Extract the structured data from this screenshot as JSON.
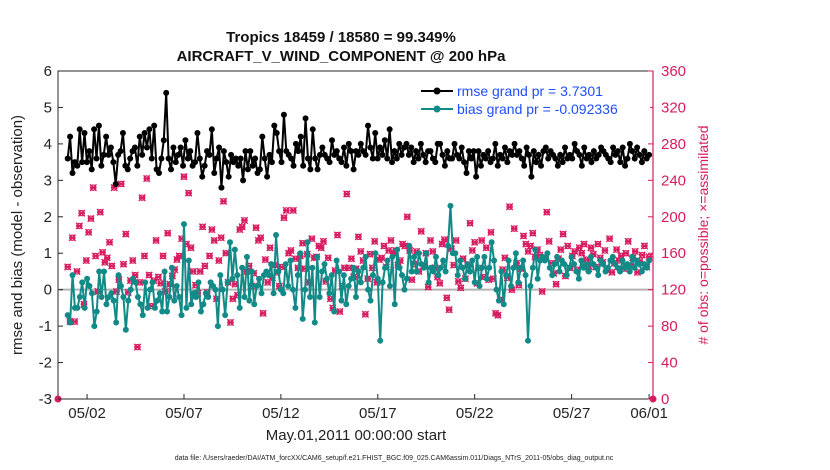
{
  "chart_data": {
    "type": "line",
    "title_line1": "Tropics 18459 / 18580 = 99.349%",
    "title_line2": "AIRCRAFT_V_WIND_COMPONENT @ 200 hPa",
    "xlabel": "May.01,2011 00:00:00 start",
    "ylabel": "rmse and bias (model - observation)",
    "ylabel_right": "# of obs: o=possible; ×=assimilated",
    "footer": "data file: /Users/raeder/DAI/ATM_forcXX/CAM6_setup/f.e21.FHIST_BGC.f09_025.CAM6assim.011/Diags_NTrS_2011-05/obs_diag_output.nc",
    "xlim": [
      0.5,
      31.2
    ],
    "ylim": [
      -3,
      6
    ],
    "ylim_right": [
      0,
      360
    ],
    "y_ticks": [
      "-3",
      "-2",
      "-1",
      "0",
      "1",
      "2",
      "3",
      "4",
      "5",
      "6"
    ],
    "y_right_ticks": [
      "0",
      "40",
      "80",
      "120",
      "160",
      "200",
      "240",
      "280",
      "320",
      "360"
    ],
    "x_ticks": [
      {
        "label": "05/02",
        "value": 2
      },
      {
        "label": "05/07",
        "value": 7
      },
      {
        "label": "05/12",
        "value": 12
      },
      {
        "label": "05/17",
        "value": 17
      },
      {
        "label": "05/22",
        "value": 22
      },
      {
        "label": "05/27",
        "value": 27
      },
      {
        "label": "06/01",
        "value": 31
      }
    ],
    "series": [
      {
        "name": "rmse grand pr = 3.7301",
        "color": "#000000",
        "values": [
          3.6,
          4.2,
          3.2,
          3.5,
          3.4,
          4.4,
          3.5,
          4.3,
          3.5,
          3.8,
          3.3,
          4.4,
          3.6,
          4.5,
          3.4,
          3.7,
          4.2,
          3.7,
          3.9,
          3.5,
          2.9,
          3.7,
          3.8,
          4.3,
          3.4,
          3.3,
          3.6,
          3.8,
          3.9,
          3.4,
          4.2,
          3.7,
          4.3,
          3.9,
          4.4,
          3.6,
          4.5,
          3.3,
          3.2,
          3.6,
          4.1,
          5.4,
          3.6,
          3.3,
          3.9,
          3.5,
          3.7,
          3.9,
          3.4,
          4.1,
          3.6,
          3.8,
          3.4,
          3.5,
          4.3,
          3.6,
          3.1,
          3.4,
          3.8,
          3.7,
          4.4,
          3.2,
          3.6,
          3.9,
          2.8,
          3.8,
          3.5,
          3.1,
          3.7,
          3.5,
          3.6,
          3.4,
          3.6,
          3.0,
          3.8,
          3.3,
          3.8,
          3.4,
          3.6,
          3.2,
          3.3,
          4.2,
          3.6,
          3.1,
          3.7,
          3.5,
          4.5,
          4.3,
          3.8,
          3.5,
          4.8,
          3.8,
          3.7,
          3.6,
          3.4,
          4.0,
          3.8,
          4.2,
          3.4,
          4.7,
          3.6,
          3.3,
          4.4,
          3.6,
          3.3,
          3.7,
          3.9,
          3.7,
          3.6,
          3.5,
          4.1,
          3.7,
          3.8,
          3.6,
          3.5,
          3.9,
          3.4,
          4.0,
          3.8,
          3.3,
          3.8,
          3.7,
          4.0,
          3.8,
          3.7,
          4.5,
          3.9,
          3.6,
          4.3,
          3.6,
          3.9,
          3.7,
          4.1,
          3.6,
          4.4,
          3.5,
          3.8,
          3.6,
          4.0,
          3.7,
          3.9,
          4.0,
          3.7,
          3.9,
          3.5,
          3.8,
          3.6,
          4.0,
          3.7,
          3.5,
          3.8,
          3.8,
          3.6,
          3.5,
          4.0,
          4.0,
          3.7,
          3.4,
          3.8,
          3.6,
          3.6,
          4.0,
          3.7,
          3.6,
          3.9,
          3.5,
          3.2,
          3.8,
          3.6,
          3.8,
          3.1,
          3.8,
          3.4,
          3.7,
          3.6,
          3.8,
          3.5,
          3.6,
          4.0,
          3.4,
          3.7,
          3.6,
          3.9,
          3.5,
          3.8,
          3.7,
          4.0,
          3.7,
          3.8,
          3.6,
          3.4,
          3.9,
          3.7,
          3.1,
          3.8,
          3.5,
          3.7,
          3.4,
          3.8,
          3.9,
          3.6,
          3.8,
          3.7,
          3.6,
          3.4,
          3.7,
          3.5,
          3.9,
          3.6,
          3.7,
          3.6,
          4.0,
          3.8,
          3.7,
          3.4,
          3.9,
          3.6,
          3.7,
          3.5,
          3.8,
          3.6,
          3.7,
          3.9,
          3.8,
          3.7,
          3.6,
          3.5,
          3.9,
          3.7,
          3.8,
          3.5,
          3.9,
          3.4,
          3.6,
          4.0,
          3.8,
          3.6,
          3.9,
          3.7,
          3.5,
          3.8,
          3.6,
          3.7
        ]
      },
      {
        "name": "bias grand pr = -0.092336",
        "color": "#128a88",
        "values": [
          -0.7,
          -0.9,
          0.4,
          -0.5,
          -0.5,
          -0.2,
          0.2,
          -0.5,
          0.3,
          0.1,
          -0.1,
          -1.0,
          -0.6,
          0.5,
          -0.2,
          0.5,
          -0.4,
          -0.2,
          -0.1,
          -0.3,
          -0.9,
          0.4,
          0.1,
          -0.2,
          -1.1,
          -0.3,
          0.0,
          0.3,
          0.2,
          -0.2,
          -0.4,
          -0.7,
          0.2,
          -0.5,
          0.0,
          0.2,
          -0.5,
          -0.3,
          -0.1,
          -0.6,
          0.5,
          -0.6,
          -0.2,
          0.6,
          -0.3,
          0.1,
          -0.2,
          -0.7,
          1.8,
          -0.5,
          0.8,
          -0.4,
          -0.1,
          -0.2,
          0.2,
          -0.6,
          -0.4,
          -0.1,
          -0.2,
          0.2,
          0.1,
          0.0,
          -1.0,
          0.4,
          0.0,
          -0.7,
          0.2,
          1.3,
          0.3,
          1.1,
          0.4,
          -0.5,
          0.6,
          -0.2,
          0.9,
          -0.3,
          0.5,
          -0.4,
          0.1,
          0.3,
          -0.1,
          0.4,
          0.5,
          0.4,
          0.7,
          -0.1,
          1.5,
          0.5,
          0.0,
          -0.1,
          0.7,
          0.1,
          0.8,
          0.0,
          -0.5,
          0.4,
          1.0,
          -0.8,
          0.0,
          1.3,
          -0.2,
          0.6,
          -0.9,
          0.9,
          -0.2,
          0.5,
          0.7,
          0.3,
          -0.1,
          0.4,
          -0.6,
          0.8,
          0.5,
          -0.3,
          0.4,
          -0.4,
          0.1,
          0.3,
          0.6,
          -0.2,
          0.5,
          0.2,
          0.6,
          0.9,
          0.0,
          -0.3,
          0.4,
          1.0,
          0.3,
          -1.4,
          0.2,
          0.6,
          0.8,
          0.1,
          0.9,
          -0.4,
          1.1,
          0.6,
          0.4,
          0.0,
          0.3,
          1.2,
          0.5,
          0.9,
          0.5,
          1.0,
          0.7,
          0.6,
          1.0,
          0.2,
          0.6,
          0.5,
          0.9,
          0.4,
          0.6,
          0.8,
          0.5,
          1.2,
          2.3,
          1.0,
          1.0,
          0.4,
          0.8,
          0.6,
          0.3,
          0.7,
          0.5,
          0.8,
          0.2,
          0.9,
          0.1,
          0.6,
          0.9,
          0.3,
          0.6,
          1.3,
          0.8,
          0.0,
          -0.3,
          0.5,
          -0.4,
          0.4,
          0.8,
          0.1,
          0.6,
          1.0,
          0.2,
          0.6,
          0.8,
          0.4,
          -1.4,
          0.1,
          0.6,
          1.1,
          0.3,
          0.8,
          0.9,
          0.8,
          1.0,
          0.6,
          0.4,
          0.7,
          0.9,
          0.5,
          0.8,
          0.7,
          0.4,
          0.6,
          0.9,
          0.7,
          0.5,
          0.3,
          0.8,
          0.6,
          0.7,
          0.5,
          0.9,
          0.7,
          0.6,
          0.4,
          0.8,
          0.7,
          0.5,
          0.6,
          0.8,
          0.9,
          0.7,
          0.6,
          0.5,
          0.8,
          0.6,
          0.7,
          0.5,
          0.9,
          0.6,
          0.8,
          0.7,
          0.5,
          0.7,
          0.6,
          0.8
        ]
      }
    ],
    "obs_possible": [
      145,
      85,
      177,
      85,
      140,
      190,
      204,
      104,
      152,
      183,
      198,
      232,
      157,
      118,
      205,
      161,
      150,
      155,
      172,
      146,
      232,
      118,
      131,
      236,
      148,
      181,
      117,
      130,
      152,
      136,
      57,
      128,
      221,
      157,
      242,
      136,
      102,
      130,
      174,
      134,
      127,
      157,
      118,
      182,
      126,
      135,
      142,
      153,
      157,
      176,
      244,
      170,
      226,
      166,
      140,
      125,
      116,
      140,
      189,
      146,
      117,
      157,
      186,
      174,
      110,
      152,
      177,
      217,
      160,
      128,
      84,
      110,
      126,
      114,
      186,
      189,
      196,
      140,
      146,
      124,
      138,
      188,
      174,
      177,
      94,
      153,
      128,
      166,
      133,
      147,
      139,
      124,
      145,
      199,
      207,
      160,
      163,
      207,
      154,
      144,
      157,
      171,
      143,
      159,
      128,
      176,
      155,
      156,
      168,
      166,
      173,
      129,
      155,
      110,
      100,
      141,
      180,
      96,
      124,
      144,
      225,
      144,
      154,
      134,
      143,
      178,
      162,
      152,
      93,
      132,
      159,
      144,
      173,
      128,
      153,
      155,
      168,
      145,
      163,
      174,
      160,
      163,
      147,
      152,
      170,
      168,
      200,
      163,
      131,
      148,
      162,
      140,
      184,
      146,
      160,
      123,
      174,
      162,
      144,
      134,
      127,
      170,
      175,
      111,
      98,
      165,
      147,
      174,
      129,
      122,
      154,
      132,
      147,
      193,
      163,
      172,
      127,
      144,
      174,
      134,
      166,
      131,
      183,
      132,
      94,
      92,
      109,
      142,
      155,
      133,
      211,
      120,
      187,
      149,
      125,
      143,
      179,
      170,
      162,
      168,
      182,
      156,
      164,
      158,
      118,
      155,
      205,
      173,
      149,
      138,
      126,
      154,
      164,
      181,
      135,
      168,
      144,
      157,
      162,
      142,
      166,
      160,
      170,
      153,
      143,
      166,
      159,
      145,
      170,
      155,
      150,
      163,
      142,
      176,
      139,
      149,
      164,
      152,
      157,
      143,
      160,
      173,
      146,
      155,
      162,
      139,
      151,
      158,
      168,
      145,
      156
    ],
    "obs_assimilated": [
      145,
      85,
      177,
      85,
      140,
      190,
      204,
      104,
      152,
      183,
      198,
      232,
      157,
      118,
      205,
      161,
      150,
      155,
      172,
      146,
      232,
      118,
      131,
      236,
      148,
      181,
      117,
      130,
      152,
      136,
      57,
      128,
      221,
      157,
      242,
      136,
      102,
      130,
      174,
      134,
      127,
      157,
      118,
      182,
      126,
      135,
      142,
      153,
      157,
      176,
      244,
      170,
      226,
      166,
      140,
      125,
      116,
      140,
      189,
      146,
      117,
      157,
      186,
      174,
      110,
      152,
      177,
      217,
      160,
      128,
      84,
      110,
      126,
      114,
      186,
      189,
      196,
      140,
      146,
      124,
      138,
      188,
      174,
      177,
      94,
      153,
      128,
      166,
      133,
      147,
      139,
      124,
      145,
      199,
      207,
      160,
      163,
      207,
      154,
      144,
      157,
      171,
      143,
      159,
      128,
      176,
      155,
      156,
      168,
      166,
      173,
      129,
      155,
      110,
      100,
      141,
      180,
      96,
      124,
      144,
      225,
      144,
      154,
      134,
      143,
      178,
      162,
      152,
      93,
      132,
      159,
      144,
      173,
      128,
      153,
      155,
      168,
      145,
      163,
      174,
      160,
      163,
      147,
      152,
      170,
      168,
      200,
      163,
      131,
      148,
      162,
      140,
      184,
      146,
      160,
      123,
      174,
      162,
      144,
      134,
      127,
      170,
      175,
      111,
      98,
      165,
      147,
      174,
      129,
      122,
      154,
      132,
      147,
      193,
      163,
      172,
      127,
      144,
      174,
      134,
      166,
      131,
      183,
      132,
      94,
      92,
      109,
      142,
      155,
      133,
      211,
      120,
      187,
      149,
      125,
      143,
      179,
      170,
      162,
      168,
      182,
      156,
      164,
      158,
      118,
      155,
      205,
      173,
      149,
      138,
      126,
      154,
      164,
      181,
      135,
      168,
      144,
      157,
      162,
      142,
      166,
      160,
      170,
      153,
      143,
      166,
      159,
      145,
      170,
      155,
      150,
      163,
      142,
      176,
      139,
      149,
      164,
      152,
      157,
      143,
      160,
      173,
      146,
      155,
      162,
      139,
      151,
      158,
      168,
      145,
      156
    ],
    "colors": {
      "rmse": "#000000",
      "bias": "#128a88",
      "obs": "#d81b60",
      "zero_line": "#b3b3b3",
      "legend_text": "#1f4fff"
    }
  }
}
